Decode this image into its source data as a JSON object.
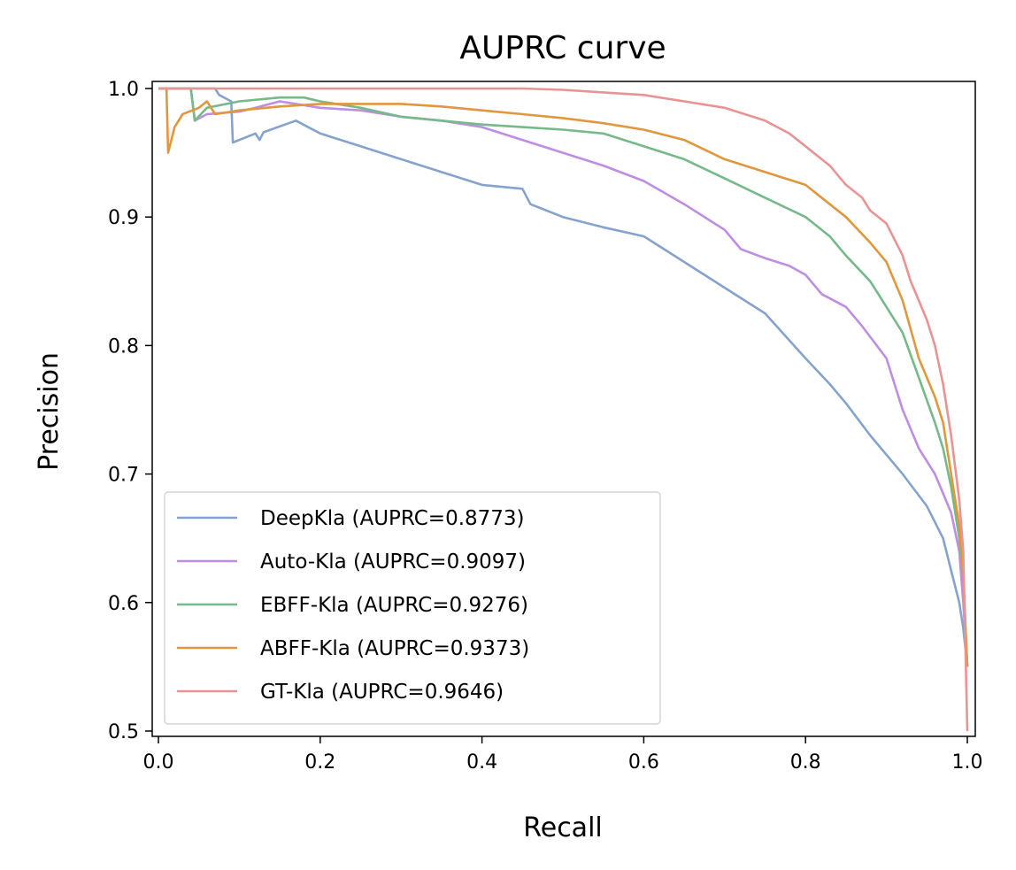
{
  "chart_data": {
    "type": "line",
    "title": "AUPRC curve",
    "xlabel": "Recall",
    "ylabel": "Precision",
    "xlim": [
      0.0,
      1.0
    ],
    "ylim": [
      0.5,
      1.0
    ],
    "xticks": [
      "0.0",
      "0.2",
      "0.4",
      "0.6",
      "0.8",
      "1.0"
    ],
    "yticks": [
      "0.5",
      "0.6",
      "0.7",
      "0.8",
      "0.9",
      "1.0"
    ],
    "grid": false,
    "legend_position": "lower-left",
    "series": [
      {
        "name": "DeepKla (AUPRC=0.8773)",
        "color": "#85a3cc",
        "points": [
          [
            0.0,
            1.0
          ],
          [
            0.07,
            1.0
          ],
          [
            0.075,
            0.995
          ],
          [
            0.09,
            0.99
          ],
          [
            0.092,
            0.958
          ],
          [
            0.12,
            0.965
          ],
          [
            0.125,
            0.96
          ],
          [
            0.13,
            0.966
          ],
          [
            0.17,
            0.975
          ],
          [
            0.2,
            0.965
          ],
          [
            0.25,
            0.955
          ],
          [
            0.3,
            0.945
          ],
          [
            0.35,
            0.935
          ],
          [
            0.4,
            0.925
          ],
          [
            0.45,
            0.922
          ],
          [
            0.46,
            0.91
          ],
          [
            0.5,
            0.9
          ],
          [
            0.55,
            0.892
          ],
          [
            0.6,
            0.885
          ],
          [
            0.65,
            0.865
          ],
          [
            0.7,
            0.845
          ],
          [
            0.75,
            0.825
          ],
          [
            0.8,
            0.79
          ],
          [
            0.83,
            0.77
          ],
          [
            0.85,
            0.755
          ],
          [
            0.88,
            0.73
          ],
          [
            0.9,
            0.715
          ],
          [
            0.92,
            0.7
          ],
          [
            0.95,
            0.675
          ],
          [
            0.97,
            0.65
          ],
          [
            0.98,
            0.625
          ],
          [
            0.99,
            0.6
          ],
          [
            0.995,
            0.58
          ],
          [
            1.0,
            0.55
          ]
        ]
      },
      {
        "name": "Auto-Kla (AUPRC=0.9097)",
        "color": "#bd8ee3",
        "points": [
          [
            0.0,
            1.0
          ],
          [
            0.04,
            1.0
          ],
          [
            0.045,
            0.975
          ],
          [
            0.06,
            0.98
          ],
          [
            0.1,
            0.982
          ],
          [
            0.12,
            0.985
          ],
          [
            0.15,
            0.99
          ],
          [
            0.2,
            0.985
          ],
          [
            0.25,
            0.983
          ],
          [
            0.3,
            0.978
          ],
          [
            0.35,
            0.975
          ],
          [
            0.4,
            0.97
          ],
          [
            0.45,
            0.96
          ],
          [
            0.5,
            0.95
          ],
          [
            0.55,
            0.94
          ],
          [
            0.6,
            0.928
          ],
          [
            0.65,
            0.91
          ],
          [
            0.7,
            0.89
          ],
          [
            0.72,
            0.875
          ],
          [
            0.75,
            0.868
          ],
          [
            0.78,
            0.862
          ],
          [
            0.8,
            0.855
          ],
          [
            0.82,
            0.84
          ],
          [
            0.85,
            0.83
          ],
          [
            0.87,
            0.815
          ],
          [
            0.9,
            0.79
          ],
          [
            0.92,
            0.75
          ],
          [
            0.94,
            0.72
          ],
          [
            0.96,
            0.7
          ],
          [
            0.98,
            0.67
          ],
          [
            0.99,
            0.64
          ],
          [
            0.995,
            0.6
          ],
          [
            1.0,
            0.55
          ]
        ]
      },
      {
        "name": "EBFF-Kla (AUPRC=0.9276)",
        "color": "#76b98a",
        "points": [
          [
            0.0,
            1.0
          ],
          [
            0.04,
            1.0
          ],
          [
            0.045,
            0.975
          ],
          [
            0.06,
            0.985
          ],
          [
            0.1,
            0.99
          ],
          [
            0.15,
            0.993
          ],
          [
            0.18,
            0.993
          ],
          [
            0.2,
            0.99
          ],
          [
            0.25,
            0.985
          ],
          [
            0.3,
            0.978
          ],
          [
            0.35,
            0.975
          ],
          [
            0.4,
            0.972
          ],
          [
            0.45,
            0.97
          ],
          [
            0.5,
            0.968
          ],
          [
            0.55,
            0.965
          ],
          [
            0.6,
            0.955
          ],
          [
            0.65,
            0.945
          ],
          [
            0.7,
            0.93
          ],
          [
            0.75,
            0.915
          ],
          [
            0.8,
            0.9
          ],
          [
            0.83,
            0.885
          ],
          [
            0.85,
            0.87
          ],
          [
            0.88,
            0.85
          ],
          [
            0.9,
            0.83
          ],
          [
            0.92,
            0.81
          ],
          [
            0.94,
            0.775
          ],
          [
            0.96,
            0.74
          ],
          [
            0.97,
            0.72
          ],
          [
            0.98,
            0.69
          ],
          [
            0.99,
            0.65
          ],
          [
            0.995,
            0.62
          ],
          [
            1.0,
            0.55
          ]
        ]
      },
      {
        "name": "ABFF-Kla (AUPRC=0.9373)",
        "color": "#e0973e",
        "points": [
          [
            0.0,
            1.0
          ],
          [
            0.01,
            1.0
          ],
          [
            0.012,
            0.95
          ],
          [
            0.02,
            0.97
          ],
          [
            0.03,
            0.98
          ],
          [
            0.05,
            0.985
          ],
          [
            0.06,
            0.99
          ],
          [
            0.07,
            0.98
          ],
          [
            0.1,
            0.983
          ],
          [
            0.15,
            0.986
          ],
          [
            0.2,
            0.988
          ],
          [
            0.3,
            0.988
          ],
          [
            0.35,
            0.986
          ],
          [
            0.4,
            0.983
          ],
          [
            0.45,
            0.98
          ],
          [
            0.5,
            0.977
          ],
          [
            0.55,
            0.973
          ],
          [
            0.6,
            0.968
          ],
          [
            0.65,
            0.96
          ],
          [
            0.7,
            0.945
          ],
          [
            0.75,
            0.935
          ],
          [
            0.8,
            0.925
          ],
          [
            0.83,
            0.91
          ],
          [
            0.85,
            0.9
          ],
          [
            0.88,
            0.88
          ],
          [
            0.9,
            0.865
          ],
          [
            0.92,
            0.835
          ],
          [
            0.94,
            0.79
          ],
          [
            0.96,
            0.76
          ],
          [
            0.97,
            0.74
          ],
          [
            0.98,
            0.7
          ],
          [
            0.99,
            0.66
          ],
          [
            0.995,
            0.62
          ],
          [
            1.0,
            0.55
          ]
        ]
      },
      {
        "name": "GT-Kla (AUPRC=0.9646)",
        "color": "#e89493",
        "points": [
          [
            0.0,
            1.0
          ],
          [
            0.45,
            1.0
          ],
          [
            0.5,
            0.999
          ],
          [
            0.55,
            0.997
          ],
          [
            0.6,
            0.995
          ],
          [
            0.65,
            0.99
          ],
          [
            0.7,
            0.985
          ],
          [
            0.75,
            0.975
          ],
          [
            0.78,
            0.965
          ],
          [
            0.8,
            0.955
          ],
          [
            0.83,
            0.94
          ],
          [
            0.85,
            0.925
          ],
          [
            0.87,
            0.915
          ],
          [
            0.88,
            0.905
          ],
          [
            0.9,
            0.895
          ],
          [
            0.92,
            0.87
          ],
          [
            0.93,
            0.85
          ],
          [
            0.95,
            0.82
          ],
          [
            0.96,
            0.8
          ],
          [
            0.97,
            0.77
          ],
          [
            0.98,
            0.73
          ],
          [
            0.99,
            0.68
          ],
          [
            0.995,
            0.64
          ],
          [
            1.0,
            0.5
          ]
        ]
      }
    ]
  }
}
